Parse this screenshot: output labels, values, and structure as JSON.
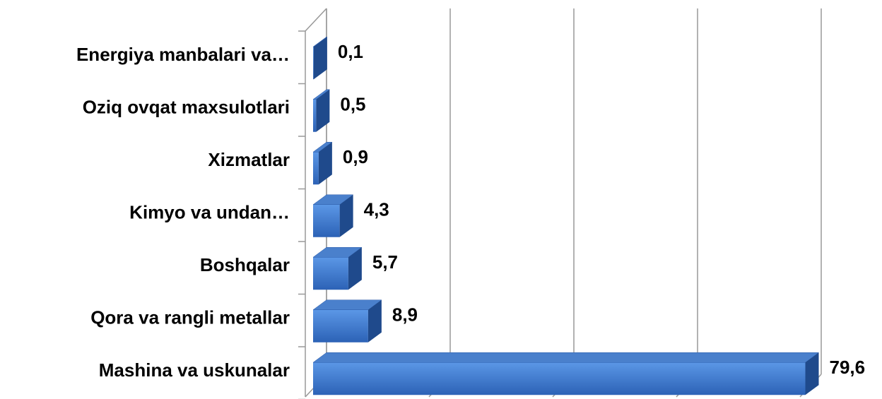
{
  "chart_data": {
    "type": "bar",
    "orientation": "horizontal",
    "categories": [
      "Energiya manbalari va…",
      "Oziq ovqat maxsulotlari",
      "Xizmatlar",
      "Kimyo va undan…",
      "Boshqalar",
      "Qora va rangli metallar",
      "Mashina va uskunalar"
    ],
    "values": [
      0.1,
      0.5,
      0.9,
      4.3,
      5.7,
      8.9,
      79.6
    ],
    "value_labels": [
      "0,1",
      "0,5",
      "0,9",
      "4,3",
      "5,7",
      "8,9",
      "79,6"
    ],
    "color": "#3c78d0",
    "xlim": [
      0,
      80
    ],
    "xticks": [
      0,
      20,
      40,
      60,
      80
    ],
    "grid": true
  }
}
